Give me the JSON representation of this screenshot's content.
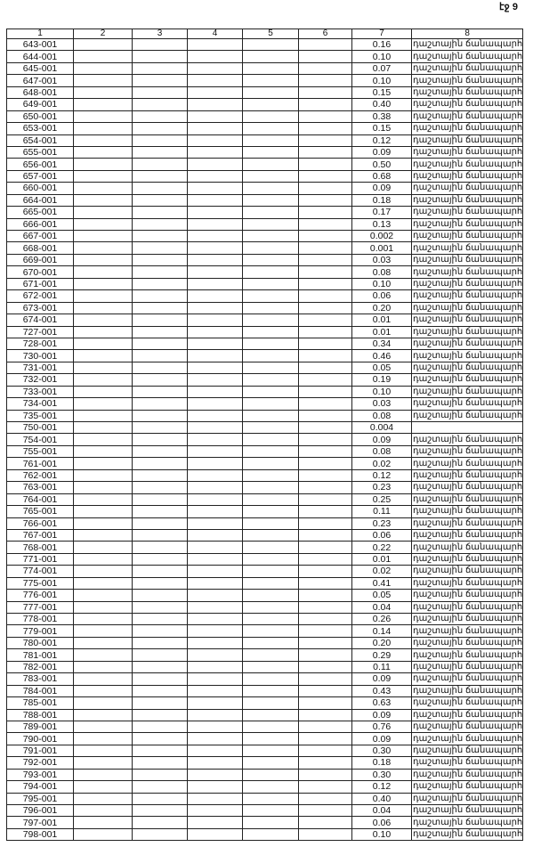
{
  "page_label": "էջ 9",
  "headers": [
    "1",
    "2",
    "3",
    "4",
    "5",
    "6",
    "7",
    "8"
  ],
  "rows": [
    {
      "id": "643-001",
      "v": "0.16",
      "t": "դաշտային ճանապարհ"
    },
    {
      "id": "644-001",
      "v": "0.10",
      "t": "դաշտային ճանապարհ"
    },
    {
      "id": "645-001",
      "v": "0.07",
      "t": "դաշտային ճանապարհ"
    },
    {
      "id": "647-001",
      "v": "0.10",
      "t": "դաշտային ճանապարհ"
    },
    {
      "id": "648-001",
      "v": "0.15",
      "t": "դաշտային ճանապարհ"
    },
    {
      "id": "649-001",
      "v": "0.40",
      "t": "դաշտային ճանապարհ"
    },
    {
      "id": "650-001",
      "v": "0.38",
      "t": "դաշտային ճանապարհ"
    },
    {
      "id": "653-001",
      "v": "0.15",
      "t": "դաշտային ճանապարհ"
    },
    {
      "id": "654-001",
      "v": "0.12",
      "t": "դաշտային ճանապարհ"
    },
    {
      "id": "655-001",
      "v": "0.09",
      "t": "դաշտային ճանապարհ"
    },
    {
      "id": "656-001",
      "v": "0.50",
      "t": "դաշտային ճանապարհ"
    },
    {
      "id": "657-001",
      "v": "0.68",
      "t": "դաշտային ճանապարհ"
    },
    {
      "id": "660-001",
      "v": "0.09",
      "t": "դաշտային ճանապարհ"
    },
    {
      "id": "664-001",
      "v": "0.18",
      "t": "դաշտային ճանապարհ"
    },
    {
      "id": "665-001",
      "v": "0.17",
      "t": "դաշտային ճանապարհ"
    },
    {
      "id": "666-001",
      "v": "0.13",
      "t": "դաշտային ճանապարհ"
    },
    {
      "id": "667-001",
      "v": "0.002",
      "t": "դաշտային ճանապարհ"
    },
    {
      "id": "668-001",
      "v": "0.001",
      "t": "դաշտային ճանապարհ"
    },
    {
      "id": "669-001",
      "v": "0.03",
      "t": "դաշտային ճանապարհ"
    },
    {
      "id": "670-001",
      "v": "0.08",
      "t": "դաշտային ճանապարհ"
    },
    {
      "id": "671-001",
      "v": "0.10",
      "t": "դաշտային ճանապարհ"
    },
    {
      "id": "672-001",
      "v": "0.06",
      "t": "դաշտային ճանապարհ"
    },
    {
      "id": "673-001",
      "v": "0.20",
      "t": "դաշտային ճանապարհ"
    },
    {
      "id": "674-001",
      "v": "0.01",
      "t": "դաշտային ճանապարհ"
    },
    {
      "id": "727-001",
      "v": "0.01",
      "t": "դաշտային ճանապարհ"
    },
    {
      "id": "728-001",
      "v": "0.34",
      "t": "դաշտային ճանապարհ"
    },
    {
      "id": "730-001",
      "v": "0.46",
      "t": "դաշտային ճանապարհ"
    },
    {
      "id": "731-001",
      "v": "0.05",
      "t": "դաշտային ճանապարհ"
    },
    {
      "id": "732-001",
      "v": "0.19",
      "t": "դաշտային ճանապարհ"
    },
    {
      "id": "733-001",
      "v": "0.10",
      "t": "դաշտային ճանապարհ"
    },
    {
      "id": "734-001",
      "v": "0.03",
      "t": "դաշտային ճանապարհ"
    },
    {
      "id": "735-001",
      "v": "0.08",
      "t": "դաշտային ճանապարհ"
    },
    {
      "id": "750-001",
      "v": "0.004",
      "t": ""
    },
    {
      "id": "754-001",
      "v": "0.09",
      "t": "դաշտային ճանապարհ"
    },
    {
      "id": "755-001",
      "v": "0.08",
      "t": "դաշտային ճանապարհ"
    },
    {
      "id": "761-001",
      "v": "0.02",
      "t": "դաշտային ճանապարհ"
    },
    {
      "id": "762-001",
      "v": "0.12",
      "t": "դաշտային ճանապարհ"
    },
    {
      "id": "763-001",
      "v": "0.23",
      "t": "դաշտային ճանապարհ"
    },
    {
      "id": "764-001",
      "v": "0.25",
      "t": "դաշտային ճանապարհ"
    },
    {
      "id": "765-001",
      "v": "0.11",
      "t": "դաշտային ճանապարհ"
    },
    {
      "id": "766-001",
      "v": "0.23",
      "t": "դաշտային ճանապարհ"
    },
    {
      "id": "767-001",
      "v": "0.06",
      "t": "դաշտային ճանապարհ"
    },
    {
      "id": "768-001",
      "v": "0.22",
      "t": "դաշտային ճանապարհ"
    },
    {
      "id": "771-001",
      "v": "0.01",
      "t": "դաշտային ճանապարհ"
    },
    {
      "id": "774-001",
      "v": "0.02",
      "t": "դաշտային ճանապարհ"
    },
    {
      "id": "775-001",
      "v": "0.41",
      "t": "դաշտային ճանապարհ"
    },
    {
      "id": "776-001",
      "v": "0.05",
      "t": "դաշտային ճանապարհ"
    },
    {
      "id": "777-001",
      "v": "0.04",
      "t": "դաշտային ճանապարհ"
    },
    {
      "id": "778-001",
      "v": "0.26",
      "t": "դաշտային ճանապարհ"
    },
    {
      "id": "779-001",
      "v": "0.14",
      "t": "դաշտային ճանապարհ"
    },
    {
      "id": "780-001",
      "v": "0.20",
      "t": "դաշտային ճանապարհ"
    },
    {
      "id": "781-001",
      "v": "0.29",
      "t": "դաշտային ճանապարհ"
    },
    {
      "id": "782-001",
      "v": "0.11",
      "t": "դաշտային ճանապարհ"
    },
    {
      "id": "783-001",
      "v": "0.09",
      "t": "դաշտային ճանապարհ"
    },
    {
      "id": "784-001",
      "v": "0.43",
      "t": "դաշտային ճանապարհ"
    },
    {
      "id": "785-001",
      "v": "0.63",
      "t": "դաշտային ճանապարհ"
    },
    {
      "id": "788-001",
      "v": "0.09",
      "t": "դաշտային ճանապարհ"
    },
    {
      "id": "789-001",
      "v": "0.76",
      "t": "դաշտային ճանապարհ"
    },
    {
      "id": "790-001",
      "v": "0.09",
      "t": "դաշտային ճանապարհ"
    },
    {
      "id": "791-001",
      "v": "0.30",
      "t": "դաշտային ճանապարհ"
    },
    {
      "id": "792-001",
      "v": "0.18",
      "t": "դաշտային ճանապարհ"
    },
    {
      "id": "793-001",
      "v": "0.30",
      "t": "դաշտային ճանապարհ"
    },
    {
      "id": "794-001",
      "v": "0.12",
      "t": "դաշտային ճանապարհ"
    },
    {
      "id": "795-001",
      "v": "0.40",
      "t": "դաշտային ճանապարհ"
    },
    {
      "id": "796-001",
      "v": "0.04",
      "t": "դաշտային ճանապարհ"
    },
    {
      "id": "797-001",
      "v": "0.06",
      "t": "դաշտային ճանապարհ"
    },
    {
      "id": "798-001",
      "v": "0.10",
      "t": "դաշտային ճանապարհ"
    }
  ]
}
